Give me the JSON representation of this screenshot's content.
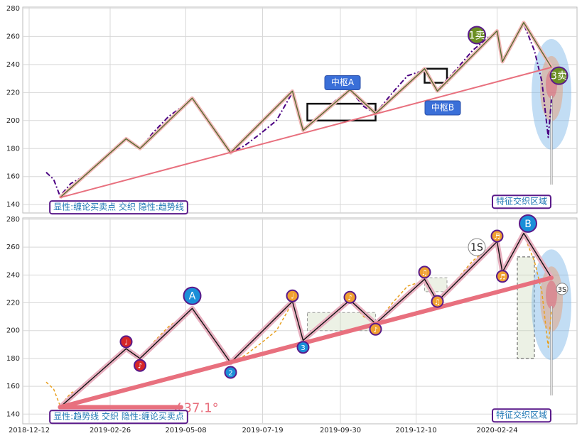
{
  "chart_data": [
    {
      "type": "line",
      "xlim": [
        "2018-12-06",
        "2020-05-09"
      ],
      "ylim": [
        134,
        281
      ],
      "yticks": [
        140,
        160,
        180,
        200,
        220,
        240,
        260,
        280
      ],
      "grid": true,
      "series": [
        {
          "style": "dashdot",
          "color": "#4b0082",
          "x": [
            "2018-12-28",
            "2019-01-04",
            "2019-01-10",
            "2019-01-20",
            "2019-02-01",
            "2019-02-12",
            "2019-02-25",
            "2019-03-13",
            "2019-03-26",
            "2019-04-08",
            "2019-04-22",
            "2019-05-14",
            "2019-05-28",
            "2019-06-08",
            "2019-06-19",
            "2019-07-02",
            "2019-07-16",
            "2019-08-01",
            "2019-08-16",
            "2019-08-26",
            "2019-09-10",
            "2019-09-25",
            "2019-10-09",
            "2019-10-22",
            "2019-11-02",
            "2019-11-18",
            "2019-12-02",
            "2019-12-18",
            "2019-12-30",
            "2020-01-15",
            "2020-02-01",
            "2020-02-12",
            "2020-02-24",
            "2020-02-29",
            "2020-03-10",
            "2020-03-20",
            "2020-03-30",
            "2020-04-06",
            "2020-04-12",
            "2020-04-15"
          ],
          "values": [
            163,
            158,
            146,
            155,
            160,
            168,
            176,
            187,
            180,
            192,
            203,
            215,
            200,
            188,
            177,
            182,
            190,
            200,
            220,
            194,
            203,
            214,
            222,
            210,
            205,
            220,
            232,
            236,
            222,
            235,
            250,
            257,
            264,
            242,
            255,
            269,
            250,
            228,
            188,
            215
          ]
        },
        {
          "style": "pen",
          "color": "#556b2f",
          "halo": "#f2b8b8",
          "x": [
            "2019-01-10",
            "2019-03-13",
            "2019-03-26",
            "2019-05-14",
            "2019-06-19",
            "2019-08-16",
            "2019-08-26",
            "2019-10-09",
            "2019-11-02",
            "2019-12-18",
            "2019-12-30",
            "2020-02-24",
            "2020-02-29",
            "2020-03-20",
            "2020-04-15"
          ],
          "values": [
            145,
            187,
            180,
            216,
            177,
            221,
            193,
            222,
            205,
            237,
            221,
            264,
            242,
            270,
            238
          ]
        },
        {
          "style": "trend",
          "color": "#e8707e",
          "x": [
            "2019-01-10",
            "2020-04-15"
          ],
          "values": [
            145,
            238
          ]
        }
      ],
      "zones": [
        {
          "x0": "2019-08-30",
          "x1": "2019-11-02",
          "y0": 200,
          "y1": 212,
          "color": "#111111"
        },
        {
          "x0": "2019-12-18",
          "x1": "2020-01-08",
          "y0": 227,
          "y1": 237,
          "color": "#111111"
        }
      ],
      "annotations": [
        {
          "text": "中枢A",
          "x": "2019-10-02",
          "y": 227,
          "style": "badge",
          "color": "#3a6fd8"
        },
        {
          "text": "中枢B",
          "x": "2020-01-04",
          "y": 209,
          "style": "badge",
          "color": "#3a6fd8"
        },
        {
          "text": "1卖",
          "x": "2020-02-05",
          "y": 261,
          "style": "circle",
          "color": "#6b8e23"
        },
        {
          "text": "3卖",
          "x": "2020-04-22",
          "y": 232,
          "style": "circle",
          "color": "#6b8e23"
        },
        {
          "text": "特征交织区域",
          "x": "2020-03-18",
          "y": 142,
          "style": "box",
          "color": "#1f77b4"
        },
        {
          "text": "显性:缠论买卖点 交织 隐性:趋势线",
          "x": "2019-03-06",
          "y": 138,
          "style": "box",
          "color": "#1f77b4"
        }
      ]
    },
    {
      "type": "line",
      "xlim": [
        "2018-12-06",
        "2020-05-09"
      ],
      "ylim": [
        133,
        281
      ],
      "yticks": [
        140,
        160,
        180,
        200,
        220,
        240,
        260,
        280
      ],
      "grid": true,
      "xticks": [
        "2018-12-12",
        "2019-02-26",
        "2019-05-08",
        "2019-07-19",
        "2019-09-30",
        "2019-12-10",
        "2020-02-24"
      ],
      "series": [
        {
          "style": "dashed",
          "color": "#e8a020",
          "x": [
            "2018-12-28",
            "2019-01-04",
            "2019-01-10",
            "2019-01-20",
            "2019-02-01",
            "2019-02-12",
            "2019-02-25",
            "2019-03-13",
            "2019-03-26",
            "2019-04-08",
            "2019-04-22",
            "2019-05-14",
            "2019-05-28",
            "2019-06-08",
            "2019-06-19",
            "2019-07-02",
            "2019-07-16",
            "2019-08-01",
            "2019-08-16",
            "2019-08-26",
            "2019-09-10",
            "2019-09-25",
            "2019-10-09",
            "2019-10-22",
            "2019-11-02",
            "2019-11-18",
            "2019-12-02",
            "2019-12-18",
            "2019-12-30",
            "2020-01-15",
            "2020-02-01",
            "2020-02-12",
            "2020-02-24",
            "2020-02-29",
            "2020-03-10",
            "2020-03-20",
            "2020-03-30",
            "2020-04-06",
            "2020-04-12",
            "2020-04-15"
          ],
          "values": [
            163,
            158,
            146,
            155,
            160,
            168,
            176,
            187,
            180,
            192,
            203,
            215,
            200,
            188,
            177,
            182,
            190,
            200,
            220,
            194,
            203,
            214,
            222,
            210,
            205,
            220,
            232,
            236,
            222,
            235,
            250,
            257,
            264,
            242,
            255,
            269,
            250,
            228,
            188,
            215
          ]
        },
        {
          "style": "pen",
          "color": "#111111",
          "halo": "#e8b0c0",
          "x": [
            "2019-01-10",
            "2019-03-13",
            "2019-03-26",
            "2019-05-14",
            "2019-06-19",
            "2019-08-16",
            "2019-08-26",
            "2019-10-09",
            "2019-11-02",
            "2019-12-18",
            "2019-12-30",
            "2020-02-24",
            "2020-02-29",
            "2020-03-20",
            "2020-04-15"
          ],
          "values": [
            145,
            187,
            180,
            216,
            177,
            221,
            193,
            222,
            205,
            237,
            221,
            264,
            242,
            270,
            238
          ]
        },
        {
          "style": "trend",
          "color": "#e8707e",
          "width": 6,
          "x": [
            "2019-01-10",
            "2020-04-15"
          ],
          "values": [
            145,
            238
          ]
        }
      ],
      "zones": [
        {
          "x0": "2019-08-30",
          "x1": "2019-11-02",
          "y0": 200,
          "y1": 213,
          "color": "#999999"
        },
        {
          "x0": "2019-12-18",
          "x1": "2020-01-08",
          "y0": 228,
          "y1": 238,
          "color": "#999999"
        },
        {
          "x0": "2020-03-14",
          "x1": "2020-03-30",
          "y0": 180,
          "y1": 253,
          "color": "#555555"
        }
      ],
      "annotations": [
        {
          "text": "A",
          "x": "2019-05-14",
          "y": 225,
          "style": "circle",
          "color": "#1a8fd8"
        },
        {
          "text": "B",
          "x": "2020-03-24",
          "y": 277,
          "style": "circle",
          "color": "#1a8fd8"
        },
        {
          "text": "1S",
          "x": "2020-02-05",
          "y": 260,
          "style": "circle-light",
          "color": "#888888"
        },
        {
          "text": "3S",
          "x": "2020-04-25",
          "y": 230,
          "style": "dot-light",
          "color": "#888888"
        },
        {
          "text": "2",
          "x": "2019-06-19",
          "y": 170,
          "style": "dot",
          "color": "#1a8fd8"
        },
        {
          "text": "3",
          "x": "2019-08-26",
          "y": 188,
          "style": "dot",
          "color": "#1a8fd8"
        },
        {
          "text": "♩",
          "x": "2019-03-13",
          "y": 192,
          "style": "dot",
          "color": "#d62728"
        },
        {
          "text": "♪",
          "x": "2019-03-26",
          "y": 175,
          "style": "dot",
          "color": "#d62728"
        },
        {
          "text": "♩",
          "x": "2019-08-16",
          "y": 225,
          "style": "dot",
          "color": "#f0a030"
        },
        {
          "text": "♪",
          "x": "2019-10-09",
          "y": 224,
          "style": "dot",
          "color": "#f0a030"
        },
        {
          "text": "♪",
          "x": "2019-11-02",
          "y": 201,
          "style": "dot",
          "color": "#f0a030"
        },
        {
          "text": "♫",
          "x": "2019-12-18",
          "y": 242,
          "style": "dot",
          "color": "#f0a030"
        },
        {
          "text": "♫",
          "x": "2019-12-30",
          "y": 221,
          "style": "dot",
          "color": "#f0a030"
        },
        {
          "text": "♬",
          "x": "2020-02-24",
          "y": 268,
          "style": "dot",
          "color": "#f0a030"
        },
        {
          "text": "♬",
          "x": "2020-02-29",
          "y": 239,
          "style": "dot",
          "color": "#f0a030"
        },
        {
          "text": "∡37.1°",
          "x": "2019-05-17",
          "y": 144,
          "style": "plain",
          "color": "#e8707e"
        },
        {
          "text": "特征交织区域",
          "x": "2020-03-18",
          "y": 139,
          "style": "box",
          "color": "#1f77b4"
        },
        {
          "text": "显性:趋势线 交织 隐性:缠论买卖点",
          "x": "2019-03-06",
          "y": 138,
          "style": "box",
          "color": "#1f77b4"
        }
      ]
    }
  ]
}
